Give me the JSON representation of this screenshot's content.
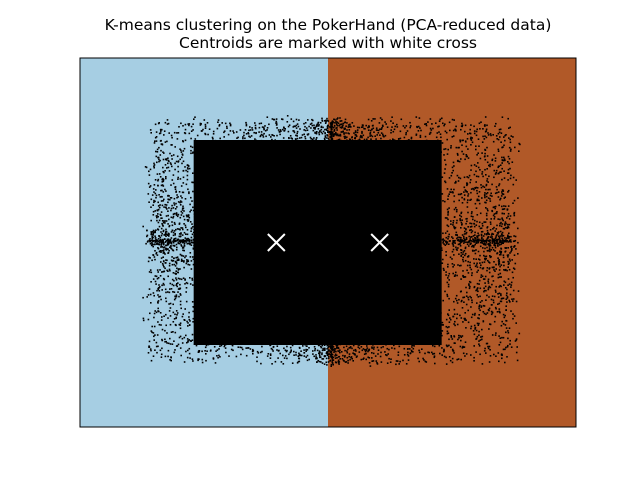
{
  "chart_data": {
    "type": "scatter",
    "title": "K-means clustering on the PokerHand (PCA-reduced data)",
    "subtitle": "Centroids are marked with white cross",
    "xlabel": "",
    "ylabel": "",
    "xlim": [
      -0.48,
      0.48
    ],
    "ylim": [
      -0.36,
      0.36
    ],
    "show_ticks": false,
    "grid": false,
    "regions": [
      {
        "cluster": 0,
        "x_range": [
          -0.48,
          0.0
        ],
        "color": "#a6cee3"
      },
      {
        "cluster": 1,
        "x_range": [
          0.0,
          0.48
        ],
        "color": "#b15928"
      }
    ],
    "cluster_boundary_x": 0.0,
    "points": {
      "color": "#000000",
      "x_extent": [
        -0.36,
        0.37
      ],
      "y_extent": [
        -0.24,
        0.25
      ],
      "core_x_extent": [
        -0.26,
        0.22
      ],
      "core_y_extent": [
        -0.2,
        0.2
      ],
      "approx_count": 14000
    },
    "centroids": [
      {
        "cluster": 0,
        "x": -0.1,
        "y": 0.0
      },
      {
        "cluster": 1,
        "x": 0.1,
        "y": 0.0
      }
    ],
    "centroid_marker": {
      "shape": "x",
      "color": "#ffffff"
    }
  }
}
